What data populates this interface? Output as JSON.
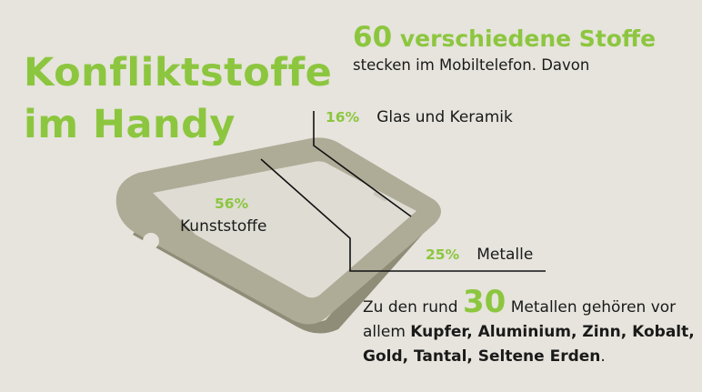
{
  "title": {
    "line1": "Konfliktstoffe",
    "line2": "im Handy"
  },
  "headline": {
    "number": "60",
    "text": "verschiedene Stoffe",
    "subline": "stecken im Mobiltelefon. Davon"
  },
  "segments": [
    {
      "percent": "16%",
      "label": "Glas und Keramik",
      "value": 16
    },
    {
      "percent": "56%",
      "label": "Kunststoffe",
      "value": 56
    },
    {
      "percent": "25%",
      "label": "Metalle",
      "value": 25
    }
  ],
  "note": {
    "prefix": "Zu den rund",
    "number": "30",
    "middle": "Metallen gehören vor allem",
    "metals": "Kupfer, Aluminium, Zinn, Kobalt, Gold, Tantal, Seltene Erden",
    "suffix": "."
  },
  "colors": {
    "background": "#e6e4dc",
    "accent": "#8cc63f",
    "phone_body": "#aeab97",
    "phone_screen": "#dedcd3",
    "text": "#1a1a1a"
  }
}
